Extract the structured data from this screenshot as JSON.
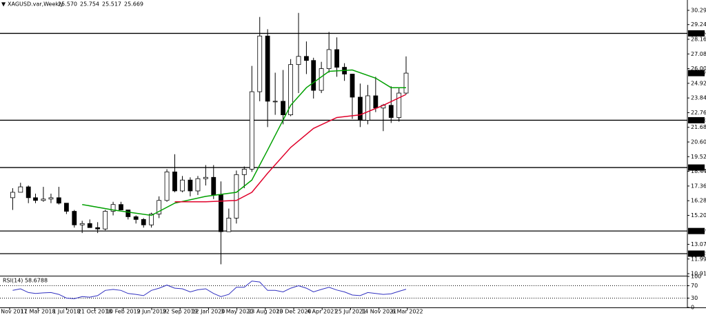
{
  "chart_data": {
    "type": "candlestick",
    "title": "XAGUSD.var,Weekly",
    "quote": [
      "25.570",
      "25.754",
      "25.517",
      "25.669"
    ],
    "xlim": [
      "2017-10-12",
      "2025-03-14"
    ],
    "ylim": [
      10.76,
      31.05
    ],
    "yticks": [
      {
        "value": 30.29,
        "label": "30.290"
      },
      {
        "value": 29.24,
        "label": "29.240"
      },
      {
        "value": 28.16,
        "label": "28.160"
      },
      {
        "value": 27.08,
        "label": "27.080"
      },
      {
        "value": 26.0,
        "label": "26.000"
      },
      {
        "value": 24.92,
        "label": "24.920"
      },
      {
        "value": 23.84,
        "label": "23.840"
      },
      {
        "value": 22.76,
        "label": "22.760"
      },
      {
        "value": 21.68,
        "label": "21.680"
      },
      {
        "value": 20.6,
        "label": "20.600"
      },
      {
        "value": 19.52,
        "label": "19.520"
      },
      {
        "value": 18.44,
        "label": "18.440"
      },
      {
        "value": 17.36,
        "label": "17.360"
      },
      {
        "value": 16.28,
        "label": "16.280"
      },
      {
        "value": 15.2,
        "label": "15.200"
      },
      {
        "value": 13.07,
        "label": "13.070"
      },
      {
        "value": 11.99,
        "label": "11.990"
      },
      {
        "value": 10.91,
        "label": "10.910"
      }
    ],
    "levels": [
      {
        "value": 28.594,
        "label": "28.594"
      },
      {
        "value": 22.202,
        "label": "22.202"
      },
      {
        "value": 18.721,
        "label": "18.721"
      },
      {
        "value": 14.049,
        "label": "14.049"
      },
      {
        "value": 12.385,
        "label": "12.385"
      }
    ],
    "last_price": {
      "value": 25.669,
      "label": "25.669"
    },
    "xticks": [
      {
        "value": "2017-11-19",
        "label": "19 Nov 2017"
      },
      {
        "value": "2018-03-11",
        "label": "11 Mar 2018"
      },
      {
        "value": "2018-07-01",
        "label": "1 Jul 2018"
      },
      {
        "value": "2018-10-21",
        "label": "21 Oct 2018"
      },
      {
        "value": "2019-02-10",
        "label": "10 Feb 2019"
      },
      {
        "value": "2019-06-02",
        "label": "2 Jun 2019"
      },
      {
        "value": "2019-09-22",
        "label": "22 Sep 2019"
      },
      {
        "value": "2020-01-12",
        "label": "12 Jan 2020"
      },
      {
        "value": "2020-05-03",
        "label": "3 May 2020"
      },
      {
        "value": "2020-08-23",
        "label": "23 Aug 2020"
      },
      {
        "value": "2020-12-13",
        "label": "13 Dec 2020"
      },
      {
        "value": "2021-04-04",
        "label": "4 Apr 2021"
      },
      {
        "value": "2021-07-25",
        "label": "25 Jul 2021"
      },
      {
        "value": "2021-11-14",
        "label": "14 Nov 2021"
      },
      {
        "value": "2022-03-06",
        "label": "6 Mar 2022"
      }
    ],
    "x": [
      "2017-12-01",
      "2018-01-01",
      "2018-02-01",
      "2018-03-01",
      "2018-04-01",
      "2018-05-01",
      "2018-06-01",
      "2018-07-01",
      "2018-08-01",
      "2018-09-01",
      "2018-10-01",
      "2018-11-01",
      "2018-12-01",
      "2019-01-01",
      "2019-02-01",
      "2019-03-01",
      "2019-04-01",
      "2019-05-01",
      "2019-06-01",
      "2019-07-01",
      "2019-08-01",
      "2019-09-01",
      "2019-10-01",
      "2019-11-01",
      "2019-12-01",
      "2020-01-01",
      "2020-02-01",
      "2020-03-01",
      "2020-04-01",
      "2020-05-01",
      "2020-06-01",
      "2020-07-01",
      "2020-08-01",
      "2020-09-01",
      "2020-10-01",
      "2020-11-01",
      "2020-12-01",
      "2021-01-01",
      "2021-02-01",
      "2021-03-01",
      "2021-04-01",
      "2021-05-01",
      "2021-06-01",
      "2021-07-01",
      "2021-08-01",
      "2021-09-01",
      "2021-10-01",
      "2021-11-01",
      "2021-12-01",
      "2022-01-01",
      "2022-02-01",
      "2022-03-01"
    ],
    "open": [
      16.5,
      16.9,
      17.3,
      16.5,
      16.3,
      16.4,
      16.5,
      16.1,
      15.5,
      14.5,
      14.6,
      14.3,
      14.2,
      15.5,
      16.0,
      15.6,
      15.1,
      14.9,
      14.5,
      15.3,
      16.3,
      18.4,
      17.0,
      17.8,
      17.0,
      17.9,
      18.0,
      16.7,
      14.0,
      15.0,
      18.2,
      18.6,
      24.3,
      28.4,
      23.6,
      23.6,
      22.6,
      26.3,
      26.9,
      26.6,
      24.4,
      26.0,
      27.4,
      26.1,
      25.6,
      23.9,
      22.2,
      24.0,
      23.1,
      23.3,
      22.4,
      24.2
    ],
    "high": [
      17.2,
      17.6,
      17.4,
      16.8,
      17.3,
      16.8,
      17.3,
      16.1,
      15.6,
      14.8,
      14.9,
      14.7,
      15.6,
      16.2,
      16.2,
      15.6,
      15.2,
      15.0,
      15.4,
      16.6,
      18.6,
      19.7,
      18.1,
      18.0,
      18.1,
      18.9,
      18.9,
      17.7,
      15.7,
      18.5,
      18.8,
      26.2,
      29.8,
      28.9,
      25.7,
      25.9,
      26.7,
      30.1,
      28.0,
      26.8,
      26.5,
      28.7,
      28.3,
      26.4,
      25.6,
      24.9,
      24.8,
      25.4,
      23.4,
      24.7,
      24.6,
      26.9
    ],
    "low": [
      15.6,
      16.9,
      16.1,
      16.1,
      16.2,
      16.1,
      16.0,
      15.3,
      14.3,
      13.9,
      14.3,
      13.9,
      14.1,
      15.2,
      15.6,
      14.9,
      14.6,
      14.3,
      14.3,
      15.0,
      16.2,
      16.9,
      16.9,
      16.6,
      16.7,
      17.4,
      16.4,
      11.6,
      14.0,
      14.6,
      17.2,
      18.4,
      23.6,
      21.7,
      22.6,
      21.9,
      22.5,
      24.2,
      25.6,
      23.8,
      24.2,
      25.7,
      25.4,
      25.1,
      22.3,
      21.7,
      21.9,
      22.8,
      21.4,
      22.0,
      22.1,
      24.1
    ],
    "close": [
      16.9,
      17.3,
      16.5,
      16.3,
      16.4,
      16.5,
      16.1,
      15.5,
      14.5,
      14.6,
      14.3,
      14.2,
      15.5,
      16.0,
      15.6,
      15.1,
      14.9,
      14.5,
      15.3,
      16.3,
      18.4,
      17.0,
      17.8,
      17.0,
      17.9,
      18.0,
      16.7,
      14.0,
      15.0,
      18.2,
      18.6,
      24.3,
      28.4,
      23.6,
      23.6,
      22.6,
      26.3,
      26.9,
      26.6,
      24.4,
      26.0,
      27.4,
      26.1,
      25.6,
      23.9,
      22.2,
      24.0,
      23.1,
      23.3,
      22.4,
      24.2,
      25.669
    ],
    "moving_averages": [
      {
        "color": "#00a000",
        "x": [
          "2018-09-01",
          "2019-01-01",
          "2019-06-01",
          "2019-09-01",
          "2020-01-01",
          "2020-05-01",
          "2020-07-01",
          "2020-09-01",
          "2020-12-01",
          "2021-02-01",
          "2021-05-01",
          "2021-08-01",
          "2021-11-01",
          "2022-01-01",
          "2022-03-01"
        ],
        "values": [
          16.0,
          15.6,
          15.2,
          16.1,
          16.6,
          16.9,
          17.8,
          20.0,
          23.3,
          24.6,
          25.8,
          25.9,
          25.3,
          24.6,
          24.6
        ]
      },
      {
        "color": "#e0002a",
        "x": [
          "2019-09-01",
          "2020-01-01",
          "2020-05-01",
          "2020-07-01",
          "2020-09-01",
          "2020-12-01",
          "2021-03-01",
          "2021-06-01",
          "2021-09-01",
          "2021-12-01",
          "2022-03-01"
        ],
        "values": [
          16.2,
          16.2,
          16.3,
          16.9,
          18.3,
          20.2,
          21.6,
          22.4,
          22.6,
          23.3,
          24.1
        ]
      }
    ],
    "rsi": {
      "label": "RSI(14) 58.6788",
      "color": "#3030c0",
      "ylim": [
        0,
        100
      ],
      "yticks": [
        100,
        70,
        30,
        0
      ],
      "values": [
        55,
        60,
        48,
        45,
        47,
        48,
        42,
        30,
        28,
        35,
        33,
        38,
        55,
        58,
        55,
        45,
        42,
        38,
        55,
        62,
        72,
        62,
        60,
        50,
        57,
        60,
        45,
        35,
        42,
        65,
        65,
        85,
        82,
        55,
        55,
        50,
        62,
        70,
        62,
        50,
        58,
        65,
        56,
        50,
        40,
        38,
        48,
        45,
        42,
        44,
        52,
        58.6788
      ]
    }
  }
}
